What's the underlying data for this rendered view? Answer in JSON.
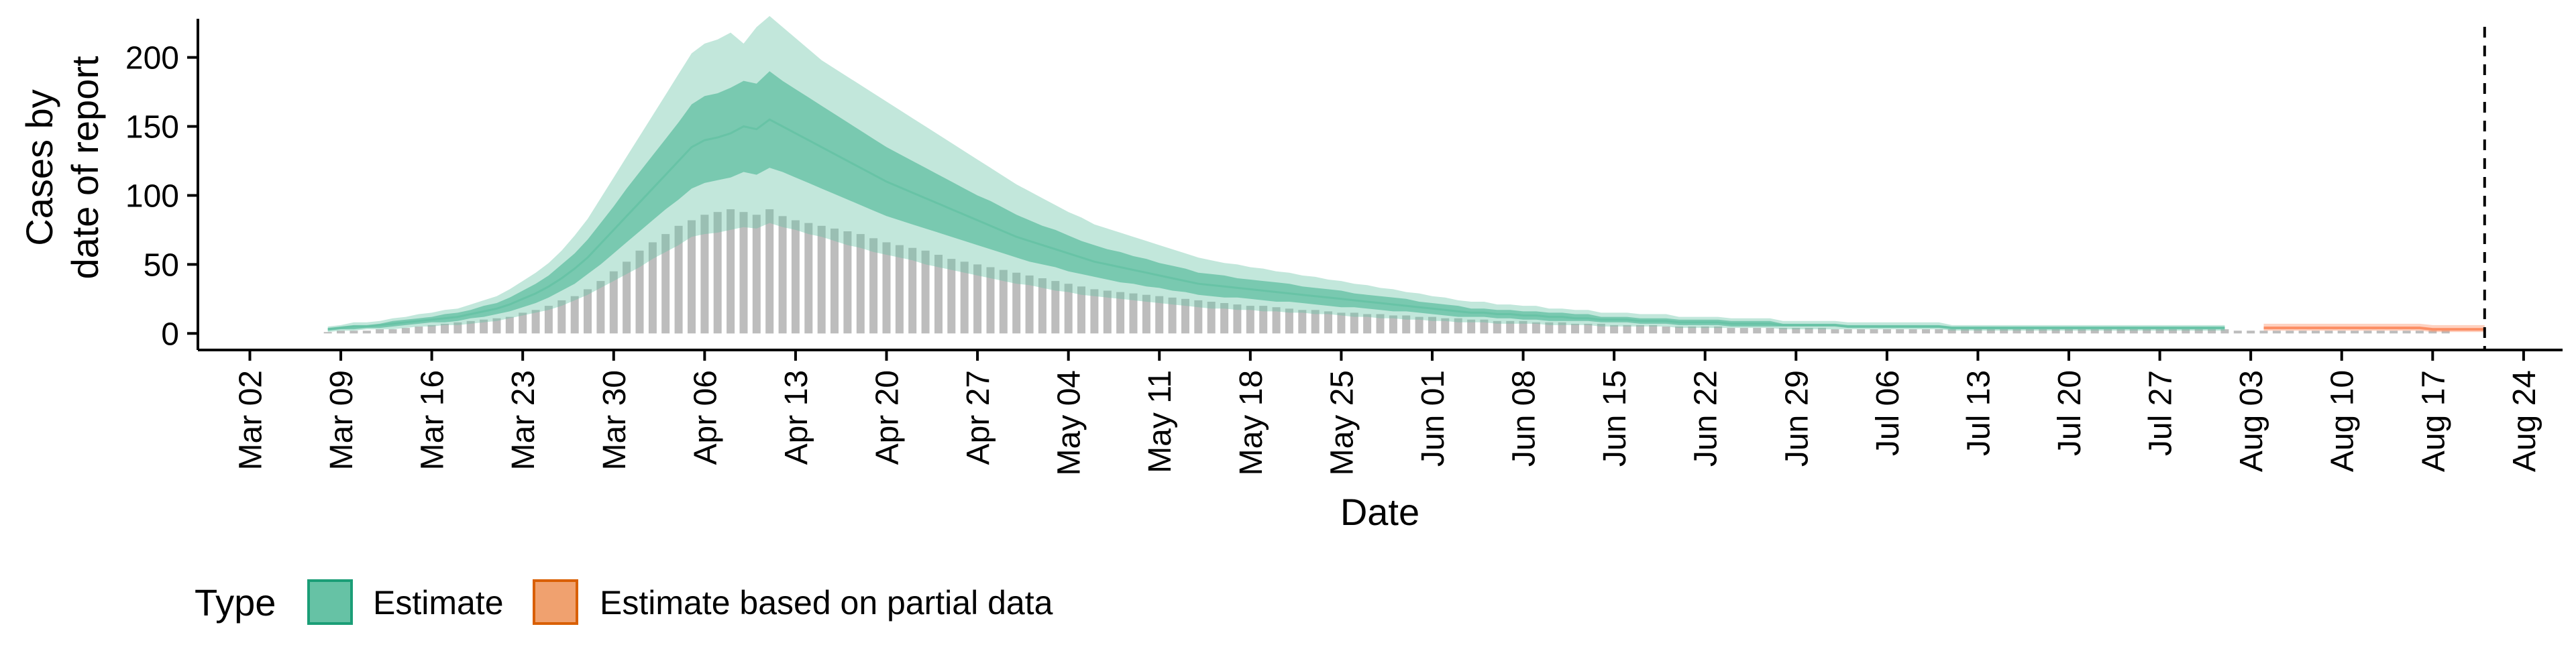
{
  "chart_data": {
    "type": "area",
    "xlabel": "Date",
    "ylabel": [
      "Cases by",
      "date of report"
    ],
    "x_range": [
      "2020-02-27",
      "2020-08-27"
    ],
    "ylim": [
      -12,
      228
    ],
    "y_ticks": [
      0,
      50,
      100,
      150,
      200
    ],
    "x_ticks": [
      {
        "date": "2020-03-02",
        "label": "Mar 02"
      },
      {
        "date": "2020-03-09",
        "label": "Mar 09"
      },
      {
        "date": "2020-03-16",
        "label": "Mar 16"
      },
      {
        "date": "2020-03-23",
        "label": "Mar 23"
      },
      {
        "date": "2020-03-30",
        "label": "Mar 30"
      },
      {
        "date": "2020-04-06",
        "label": "Apr 06"
      },
      {
        "date": "2020-04-13",
        "label": "Apr 13"
      },
      {
        "date": "2020-04-20",
        "label": "Apr 20"
      },
      {
        "date": "2020-04-27",
        "label": "Apr 27"
      },
      {
        "date": "2020-05-04",
        "label": "May 04"
      },
      {
        "date": "2020-05-11",
        "label": "May 11"
      },
      {
        "date": "2020-05-18",
        "label": "May 18"
      },
      {
        "date": "2020-05-25",
        "label": "May 25"
      },
      {
        "date": "2020-06-01",
        "label": "Jun 01"
      },
      {
        "date": "2020-06-08",
        "label": "Jun 08"
      },
      {
        "date": "2020-06-15",
        "label": "Jun 15"
      },
      {
        "date": "2020-06-22",
        "label": "Jun 22"
      },
      {
        "date": "2020-06-29",
        "label": "Jun 29"
      },
      {
        "date": "2020-07-06",
        "label": "Jul 06"
      },
      {
        "date": "2020-07-13",
        "label": "Jul 13"
      },
      {
        "date": "2020-07-20",
        "label": "Jul 20"
      },
      {
        "date": "2020-07-27",
        "label": "Jul 27"
      },
      {
        "date": "2020-08-03",
        "label": "Aug 03"
      },
      {
        "date": "2020-08-10",
        "label": "Aug 10"
      },
      {
        "date": "2020-08-17",
        "label": "Aug 17"
      },
      {
        "date": "2020-08-24",
        "label": "Aug 24"
      }
    ],
    "reference_line": {
      "date": "2020-08-21",
      "style": "dashed"
    },
    "bars": {
      "start_date": "2020-03-08",
      "color": "#bdbdbd",
      "values": [
        1,
        2,
        2,
        2,
        3,
        3,
        4,
        5,
        6,
        7,
        8,
        9,
        10,
        11,
        12,
        15,
        17,
        20,
        24,
        27,
        32,
        38,
        45,
        52,
        60,
        66,
        72,
        78,
        82,
        86,
        88,
        90,
        88,
        86,
        90,
        85,
        82,
        80,
        78,
        76,
        74,
        72,
        69,
        66,
        64,
        62,
        60,
        57,
        54,
        52,
        50,
        48,
        46,
        44,
        42,
        40,
        38,
        36,
        34,
        32,
        31,
        30,
        29,
        28,
        27,
        26,
        25,
        24,
        23,
        22,
        21,
        20,
        20,
        19,
        18,
        17,
        17,
        16,
        15,
        15,
        14,
        14,
        13,
        13,
        12,
        12,
        11,
        11,
        10,
        10,
        9,
        9,
        9,
        8,
        8,
        8,
        7,
        7,
        7,
        6,
        6,
        6,
        6,
        5,
        5,
        5,
        5,
        5,
        4,
        4,
        4,
        4,
        4,
        4,
        4,
        4,
        3,
        3,
        3,
        3,
        3,
        3,
        3,
        3,
        3,
        3,
        3,
        3,
        3,
        3,
        3,
        3,
        3,
        3,
        3,
        3,
        3,
        3,
        3,
        3,
        3,
        3,
        3,
        3,
        3,
        3,
        3,
        2,
        2,
        2,
        2,
        2,
        2,
        2,
        2,
        2,
        2,
        2,
        2,
        2,
        2,
        2,
        2,
        2
      ]
    },
    "series": [
      {
        "name": "Estimate",
        "color": "#66c2a5",
        "start_date": "2020-03-08",
        "median": [
          3,
          4,
          5,
          5,
          6,
          7,
          8,
          9,
          10,
          11,
          12,
          14,
          16,
          18,
          21,
          25,
          29,
          34,
          40,
          47,
          55,
          65,
          75,
          85,
          95,
          105,
          115,
          125,
          135,
          140,
          142,
          145,
          150,
          148,
          155,
          150,
          145,
          140,
          135,
          130,
          125,
          120,
          115,
          110,
          106,
          102,
          98,
          94,
          90,
          86,
          82,
          78,
          74,
          70,
          67,
          64,
          61,
          58,
          55,
          52,
          50,
          48,
          46,
          44,
          42,
          40,
          38,
          36,
          35,
          34,
          33,
          32,
          31,
          30,
          29,
          28,
          27,
          26,
          25,
          24,
          23,
          22,
          21,
          20,
          19,
          18,
          17,
          16,
          15,
          15,
          14,
          14,
          13,
          13,
          12,
          12,
          11,
          11,
          10,
          10,
          10,
          9,
          9,
          9,
          8,
          8,
          8,
          8,
          7,
          7,
          7,
          7,
          6,
          6,
          6,
          6,
          6,
          5,
          5,
          5,
          5,
          5,
          5,
          5,
          5,
          4,
          4,
          4,
          4,
          4,
          4,
          4,
          4,
          4,
          4,
          4,
          4,
          4,
          4,
          4,
          4,
          4,
          4,
          4,
          4,
          4,
          4
        ],
        "lower50": [
          2,
          3,
          3,
          4,
          4,
          5,
          6,
          7,
          8,
          8,
          9,
          11,
          12,
          14,
          16,
          19,
          22,
          26,
          31,
          36,
          43,
          50,
          58,
          66,
          74,
          82,
          90,
          97,
          105,
          109,
          111,
          113,
          117,
          115,
          120,
          117,
          113,
          109,
          105,
          101,
          97,
          93,
          89,
          85,
          82,
          79,
          76,
          73,
          70,
          67,
          64,
          61,
          58,
          55,
          52,
          50,
          48,
          45,
          43,
          41,
          39,
          37,
          36,
          34,
          33,
          31,
          30,
          28,
          27,
          26,
          26,
          25,
          24,
          23,
          23,
          22,
          21,
          20,
          19,
          19,
          18,
          17,
          16,
          16,
          15,
          14,
          13,
          12,
          12,
          12,
          11,
          11,
          10,
          10,
          9,
          9,
          9,
          9,
          8,
          8,
          8,
          7,
          7,
          7,
          6,
          6,
          6,
          6,
          5,
          5,
          5,
          5,
          5,
          5,
          5,
          5,
          5,
          4,
          4,
          4,
          4,
          4,
          4,
          4,
          4,
          3,
          3,
          3,
          3,
          3,
          3,
          3,
          3,
          3,
          3,
          3,
          3,
          3,
          3,
          3,
          3,
          3,
          3,
          3,
          3,
          3,
          3
        ],
        "upper50": [
          4,
          5,
          6,
          6,
          7,
          9,
          10,
          11,
          12,
          14,
          15,
          17,
          20,
          22,
          26,
          31,
          36,
          42,
          50,
          58,
          68,
          80,
          92,
          105,
          117,
          129,
          141,
          153,
          166,
          172,
          174,
          178,
          183,
          181,
          190,
          183,
          177,
          171,
          165,
          159,
          153,
          147,
          141,
          135,
          130,
          125,
          120,
          115,
          110,
          105,
          100,
          96,
          91,
          86,
          82,
          78,
          75,
          71,
          67,
          64,
          61,
          59,
          56,
          54,
          51,
          49,
          47,
          44,
          43,
          42,
          40,
          39,
          38,
          37,
          36,
          34,
          33,
          32,
          31,
          29,
          28,
          27,
          26,
          25,
          23,
          22,
          21,
          20,
          18,
          18,
          17,
          17,
          16,
          16,
          15,
          15,
          14,
          14,
          12,
          12,
          12,
          11,
          11,
          11,
          10,
          10,
          10,
          10,
          9,
          9,
          9,
          9,
          7,
          7,
          7,
          7,
          7,
          6,
          6,
          6,
          6,
          6,
          6,
          6,
          6,
          5,
          5,
          5,
          5,
          5,
          5,
          5,
          5,
          5,
          5,
          5,
          5,
          5,
          5,
          5,
          5,
          5,
          5,
          5,
          5,
          5,
          5
        ],
        "lower90": [
          1,
          2,
          2,
          3,
          3,
          3,
          4,
          5,
          5,
          6,
          6,
          7,
          8,
          9,
          11,
          13,
          15,
          17,
          20,
          24,
          28,
          33,
          38,
          43,
          48,
          54,
          59,
          64,
          70,
          72,
          73,
          75,
          77,
          76,
          80,
          77,
          75,
          72,
          70,
          67,
          64,
          62,
          59,
          57,
          55,
          53,
          50,
          48,
          46,
          44,
          42,
          40,
          38,
          36,
          35,
          33,
          31,
          30,
          28,
          27,
          26,
          25,
          24,
          23,
          22,
          21,
          20,
          19,
          18,
          18,
          17,
          17,
          16,
          16,
          15,
          15,
          14,
          14,
          13,
          12,
          12,
          11,
          11,
          10,
          10,
          9,
          9,
          8,
          8,
          8,
          7,
          7,
          7,
          7,
          6,
          6,
          6,
          6,
          5,
          5,
          5,
          5,
          5,
          5,
          4,
          4,
          4,
          4,
          4,
          4,
          4,
          4,
          3,
          3,
          3,
          3,
          3,
          3,
          3,
          3,
          3,
          3,
          3,
          3,
          3,
          2,
          2,
          2,
          2,
          2,
          2,
          2,
          2,
          2,
          2,
          2,
          2,
          2,
          2,
          2,
          2,
          2,
          2,
          2,
          2,
          2,
          2
        ],
        "upper90": [
          5,
          6,
          8,
          8,
          9,
          11,
          12,
          14,
          15,
          17,
          18,
          21,
          24,
          27,
          32,
          38,
          44,
          51,
          60,
          71,
          83,
          98,
          113,
          128,
          143,
          158,
          173,
          188,
          203,
          210,
          213,
          218,
          210,
          222,
          230,
          222,
          214,
          206,
          198,
          192,
          186,
          180,
          174,
          168,
          162,
          156,
          150,
          144,
          138,
          132,
          126,
          120,
          114,
          108,
          103,
          98,
          93,
          88,
          84,
          79,
          76,
          73,
          70,
          67,
          64,
          61,
          58,
          55,
          53,
          51,
          50,
          48,
          47,
          45,
          44,
          42,
          41,
          39,
          38,
          36,
          35,
          33,
          32,
          30,
          29,
          27,
          26,
          24,
          23,
          23,
          21,
          21,
          20,
          20,
          18,
          18,
          17,
          17,
          15,
          15,
          15,
          14,
          14,
          14,
          12,
          12,
          12,
          12,
          11,
          11,
          11,
          11,
          9,
          9,
          9,
          9,
          9,
          8,
          8,
          8,
          8,
          8,
          8,
          8,
          8,
          6,
          6,
          6,
          6,
          6,
          6,
          6,
          6,
          6,
          6,
          6,
          6,
          6,
          6,
          6,
          6,
          6,
          6,
          6,
          6,
          6,
          6
        ]
      },
      {
        "name": "Estimate based on partial data",
        "color": "#fc8d62",
        "start_date": "2020-08-04",
        "median": [
          4,
          4,
          4,
          4,
          4,
          4,
          4,
          4,
          4,
          4,
          4,
          4,
          4,
          3,
          3,
          3,
          3,
          3
        ],
        "lower50": [
          3,
          3,
          3,
          3,
          3,
          3,
          3,
          3,
          3,
          3,
          3,
          3,
          3,
          2,
          2,
          2,
          2,
          2
        ],
        "upper50": [
          5,
          5,
          5,
          5,
          5,
          5,
          5,
          5,
          5,
          5,
          5,
          5,
          5,
          4,
          4,
          4,
          4,
          4
        ],
        "lower90": [
          2,
          2,
          2,
          2,
          2,
          2,
          2,
          2,
          2,
          2,
          2,
          2,
          2,
          1,
          1,
          1,
          1,
          1
        ],
        "upper90": [
          7,
          7,
          7,
          7,
          7,
          7,
          7,
          7,
          7,
          7,
          7,
          7,
          7,
          6,
          6,
          6,
          6,
          6
        ]
      }
    ],
    "legend": {
      "title": "Type",
      "placement": "bottom-left",
      "entries": [
        {
          "label": "Estimate",
          "fill": "#66c2a5",
          "stroke": "#1b9e77"
        },
        {
          "label": "Estimate based on partial data",
          "fill": "#fc8d62",
          "stroke": "#d95f02"
        }
      ]
    },
    "grid": false
  }
}
